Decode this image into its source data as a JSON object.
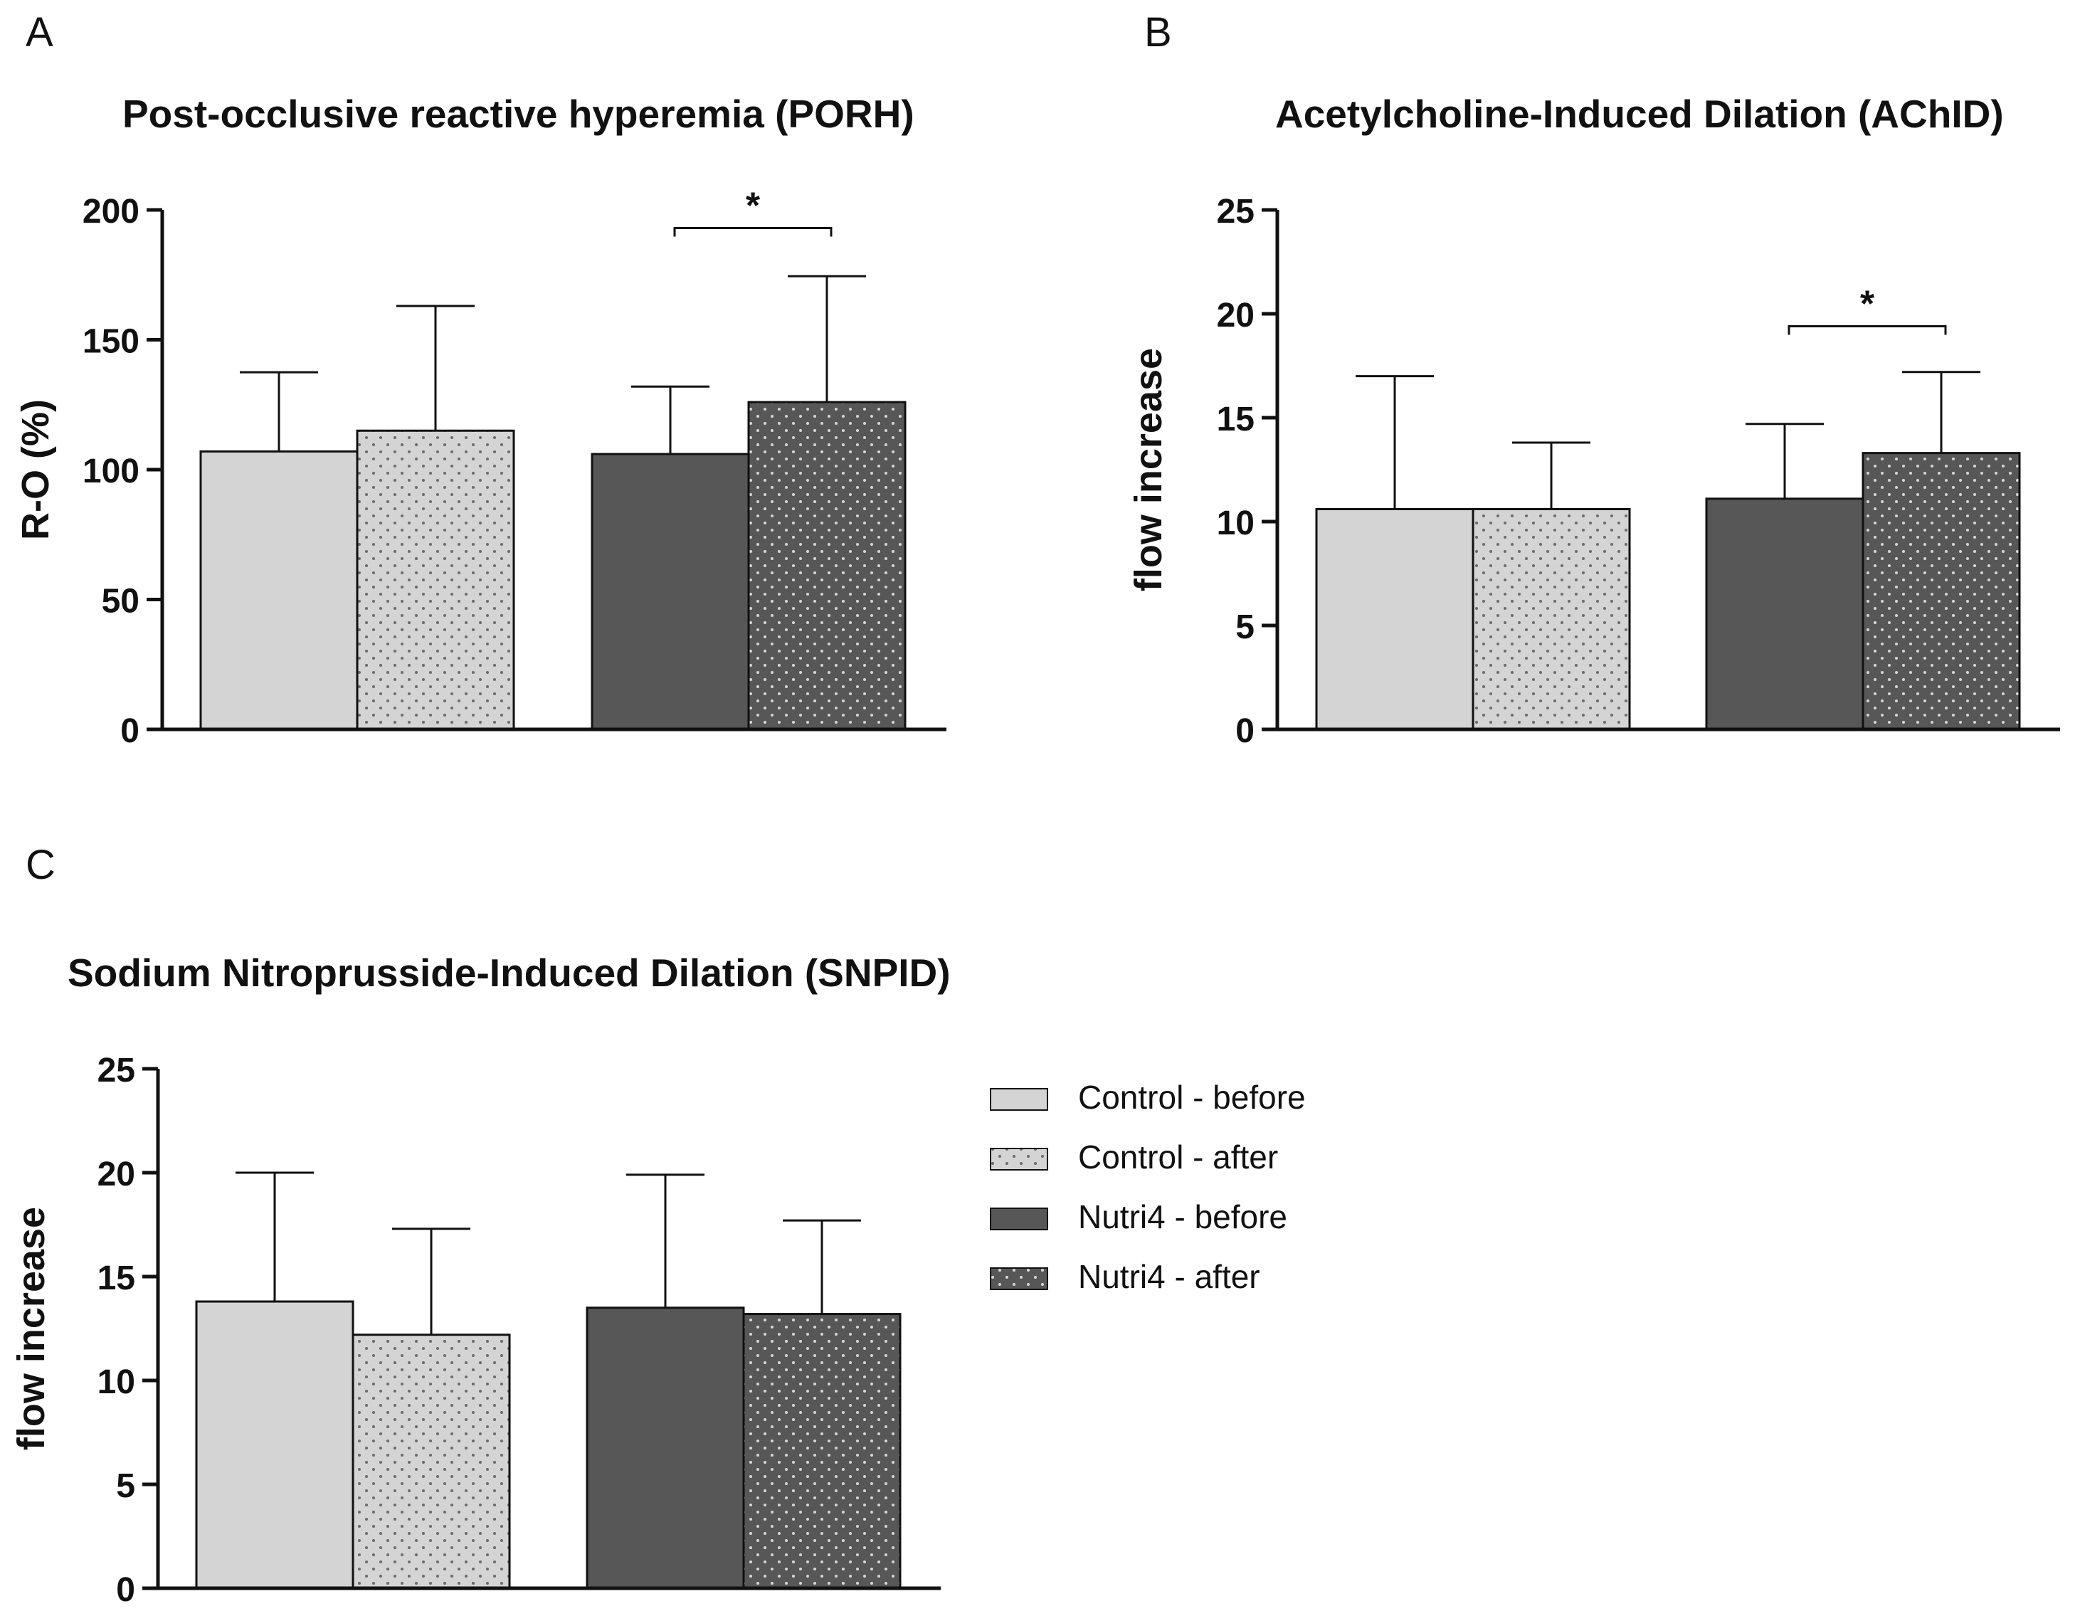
{
  "panel_labels": {
    "a": "A",
    "b": "B",
    "c": "C"
  },
  "legend": {
    "items": [
      {
        "label": "Control - before",
        "fill": "solid-light"
      },
      {
        "label": "Control - after",
        "fill": "dots-light"
      },
      {
        "label": "Nutri4 - before",
        "fill": "solid-dark"
      },
      {
        "label": "Nutri4 - after",
        "fill": "dots-dark"
      }
    ]
  },
  "colors": {
    "light": "#d4d4d4",
    "dark": "#575757",
    "dot_on_light": "#6a6a6a",
    "dot_on_dark": "#d8d8d8",
    "stroke": "#111111"
  },
  "chart_data": [
    {
      "id": "a",
      "type": "bar",
      "title": "Post-occlusive reactive hyperemia (PORH)",
      "xlabel": "",
      "ylabel": "R-O (%)",
      "ylim": [
        0,
        200
      ],
      "yticks": [
        0,
        50,
        100,
        150,
        200
      ],
      "series": [
        {
          "name": "Control - before",
          "value": 107,
          "error": 137.5
        },
        {
          "name": "Control - after",
          "value": 115,
          "error": 163
        },
        {
          "name": "Nutri4 - before",
          "value": 106,
          "error": 132
        },
        {
          "name": "Nutri4 - after",
          "value": 126,
          "error": 174.5
        }
      ],
      "significance": {
        "from": 2,
        "to": 3,
        "level": 193,
        "label": "*"
      }
    },
    {
      "id": "b",
      "type": "bar",
      "title": "Acetylcholine-Induced Dilation (AChID)",
      "xlabel": "",
      "ylabel": "flow increase",
      "ylim": [
        0,
        25
      ],
      "yticks": [
        0,
        5,
        10,
        15,
        20,
        25
      ],
      "series": [
        {
          "name": "Control - before",
          "value": 10.6,
          "error": 17.0
        },
        {
          "name": "Control - after",
          "value": 10.6,
          "error": 13.8
        },
        {
          "name": "Nutri4 - before",
          "value": 11.1,
          "error": 14.7
        },
        {
          "name": "Nutri4 - after",
          "value": 13.3,
          "error": 17.2
        }
      ],
      "significance": {
        "from": 2,
        "to": 3,
        "level": 19.4,
        "label": "*"
      }
    },
    {
      "id": "c",
      "type": "bar",
      "title": "Sodium Nitroprusside-Induced Dilation (SNPID)",
      "xlabel": "",
      "ylabel": "flow increase",
      "ylim": [
        0,
        25
      ],
      "yticks": [
        0,
        5,
        10,
        15,
        20,
        25
      ],
      "series": [
        {
          "name": "Control - before",
          "value": 13.8,
          "error": 20.0
        },
        {
          "name": "Control - after",
          "value": 12.2,
          "error": 17.3
        },
        {
          "name": "Nutri4 - before",
          "value": 13.5,
          "error": 19.9
        },
        {
          "name": "Nutri4 - after",
          "value": 13.2,
          "error": 17.7
        }
      ],
      "significance": null
    }
  ]
}
